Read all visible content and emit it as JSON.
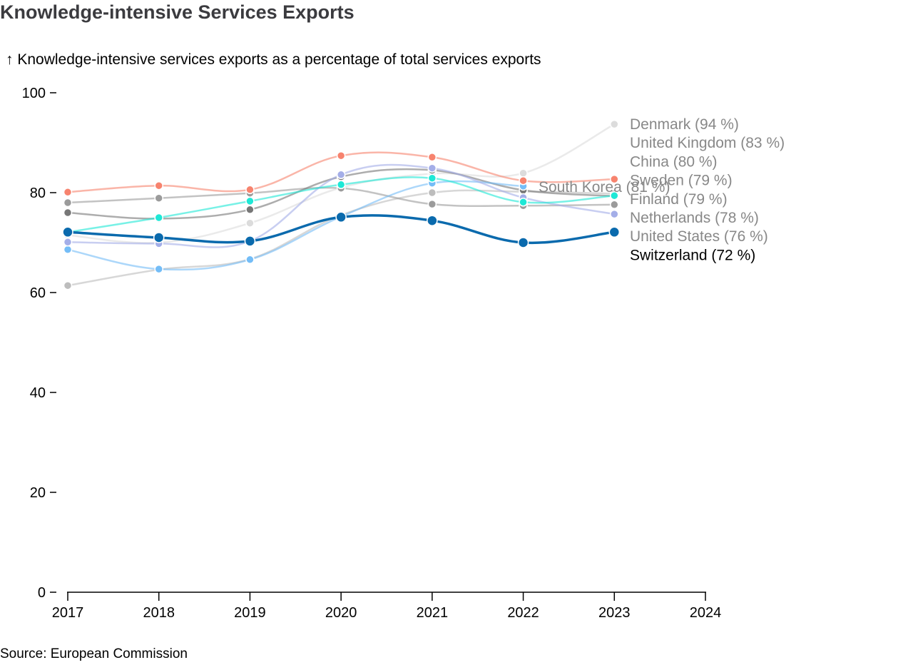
{
  "title": "Knowledge-intensive Services Exports",
  "subtitle": "↑ Knowledge-intensive services exports as a percentage of total services exports",
  "source": "Source: European Commission",
  "chart_data": {
    "type": "line",
    "title": "Knowledge-intensive Services Exports",
    "ylabel": "Knowledge-intensive services exports as a percentage of total services exports",
    "xlabel": "",
    "x": [
      2017,
      2018,
      2019,
      2020,
      2021,
      2022,
      2023
    ],
    "xticks": [
      "2017",
      "2018",
      "2019",
      "2020",
      "2021",
      "2022",
      "2023",
      "2024"
    ],
    "xlim": [
      2017,
      2024
    ],
    "yticks": [
      "0",
      "20",
      "40",
      "60",
      "80",
      "100"
    ],
    "ylim": [
      0,
      100
    ],
    "grid": false,
    "legend": "inline-right",
    "series": [
      {
        "name": "Denmark",
        "label": "Denmark (94 %)",
        "color": "#dcdcdc",
        "highlight": false,
        "values": [
          71.5,
          70.0,
          73.9,
          81.0,
          83.8,
          83.9,
          93.7
        ]
      },
      {
        "name": "China",
        "label": "China (80 %)",
        "color": "#bdbdbd",
        "highlight": false,
        "values": [
          61.4,
          64.6,
          66.7,
          75.5,
          80.0,
          80.2,
          79.8
        ]
      },
      {
        "name": "Netherlands",
        "label": "Netherlands (78 %)",
        "color": "#9b9b9b",
        "highlight": false,
        "values": [
          78.0,
          78.9,
          79.9,
          80.9,
          77.7,
          77.4,
          77.6
        ]
      },
      {
        "name": "Sweden",
        "label": "Sweden (79 %)",
        "color": "#777777",
        "highlight": false,
        "values": [
          76.0,
          74.8,
          76.6,
          83.2,
          84.5,
          80.5,
          79.3
        ]
      },
      {
        "name": "South Korea",
        "label": "South Korea (81 %)",
        "color": "#74bdf7",
        "highlight": false,
        "values": [
          68.6,
          64.7,
          66.6,
          75.2,
          81.9,
          81.3,
          null
        ]
      },
      {
        "name": "United States",
        "label": "United States (76 %)",
        "color": "#a4aee8",
        "highlight": false,
        "values": [
          70.1,
          69.8,
          70.3,
          83.6,
          84.9,
          79.0,
          75.7
        ]
      },
      {
        "name": "Finland",
        "label": "Finland (79 %)",
        "color": "#1ee8d6",
        "highlight": false,
        "values": [
          72.1,
          75.0,
          78.3,
          81.6,
          82.9,
          78.1,
          79.4
        ]
      },
      {
        "name": "United Kingdom",
        "label": "United Kingdom (83 %)",
        "color": "#f7836e",
        "highlight": false,
        "values": [
          80.1,
          81.4,
          80.6,
          87.4,
          87.1,
          82.4,
          82.7
        ]
      },
      {
        "name": "Switzerland",
        "label": "Switzerland (72 %)",
        "color": "#0a6aad",
        "highlight": true,
        "values": [
          72.1,
          71.0,
          70.3,
          75.1,
          74.4,
          70.0,
          72.1
        ]
      }
    ],
    "end_labels": [
      "Denmark (94 %)",
      "United Kingdom (83 %)",
      "China (80 %)",
      "Sweden (79 %)",
      "Finland (79 %)",
      "Netherlands (78 %)",
      "United States (76 %)",
      "Switzerland (72 %)"
    ],
    "inline_label": "South Korea (81 %)"
  }
}
